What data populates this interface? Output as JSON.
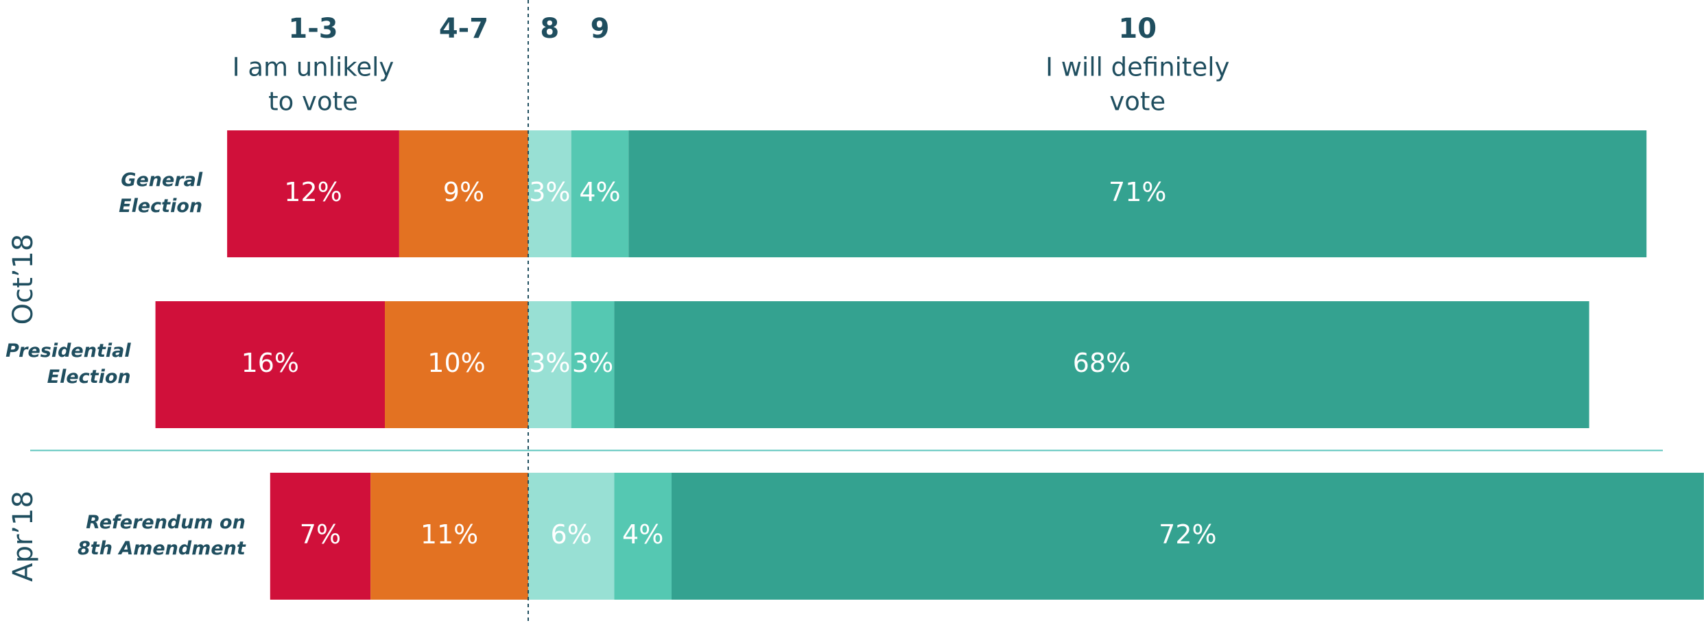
{
  "chart_data": {
    "type": "diverging_stacked_bar",
    "groups": [
      {
        "name": "Oct’18",
        "categories": [
          [
            "General",
            "Election"
          ],
          [
            "Presidential",
            "Election"
          ]
        ]
      },
      {
        "name": "Apr’18",
        "categories": [
          [
            "Referendum on",
            "8th Amendment"
          ]
        ]
      }
    ],
    "series": [
      {
        "name": "1-3",
        "subtitle": [
          "I am unlikely",
          "to vote"
        ],
        "side": "left",
        "color": "#d0103a",
        "values": [
          12,
          16,
          7
        ],
        "value_labels": [
          "12%",
          "16%",
          "7%"
        ]
      },
      {
        "name": "4-7",
        "side": "left",
        "color": "#e37222",
        "values": [
          9,
          10,
          11
        ],
        "value_labels": [
          "9%",
          "10%",
          "11%"
        ]
      },
      {
        "name": "8",
        "side": "right",
        "color": "#98e0d4",
        "values": [
          3,
          3,
          6
        ],
        "value_labels": [
          "3%",
          "3%",
          "6%"
        ]
      },
      {
        "name": "9",
        "side": "right",
        "color": "#55c8b2",
        "values": [
          4,
          3,
          4
        ],
        "value_labels": [
          "4%",
          "3%",
          "4%"
        ]
      },
      {
        "name": "10",
        "subtitle": [
          "I will definitely",
          "vote"
        ],
        "side": "right",
        "color": "#34a290",
        "values": [
          71,
          68,
          72
        ],
        "value_labels": [
          "71%",
          "68%",
          "72%"
        ]
      }
    ]
  }
}
